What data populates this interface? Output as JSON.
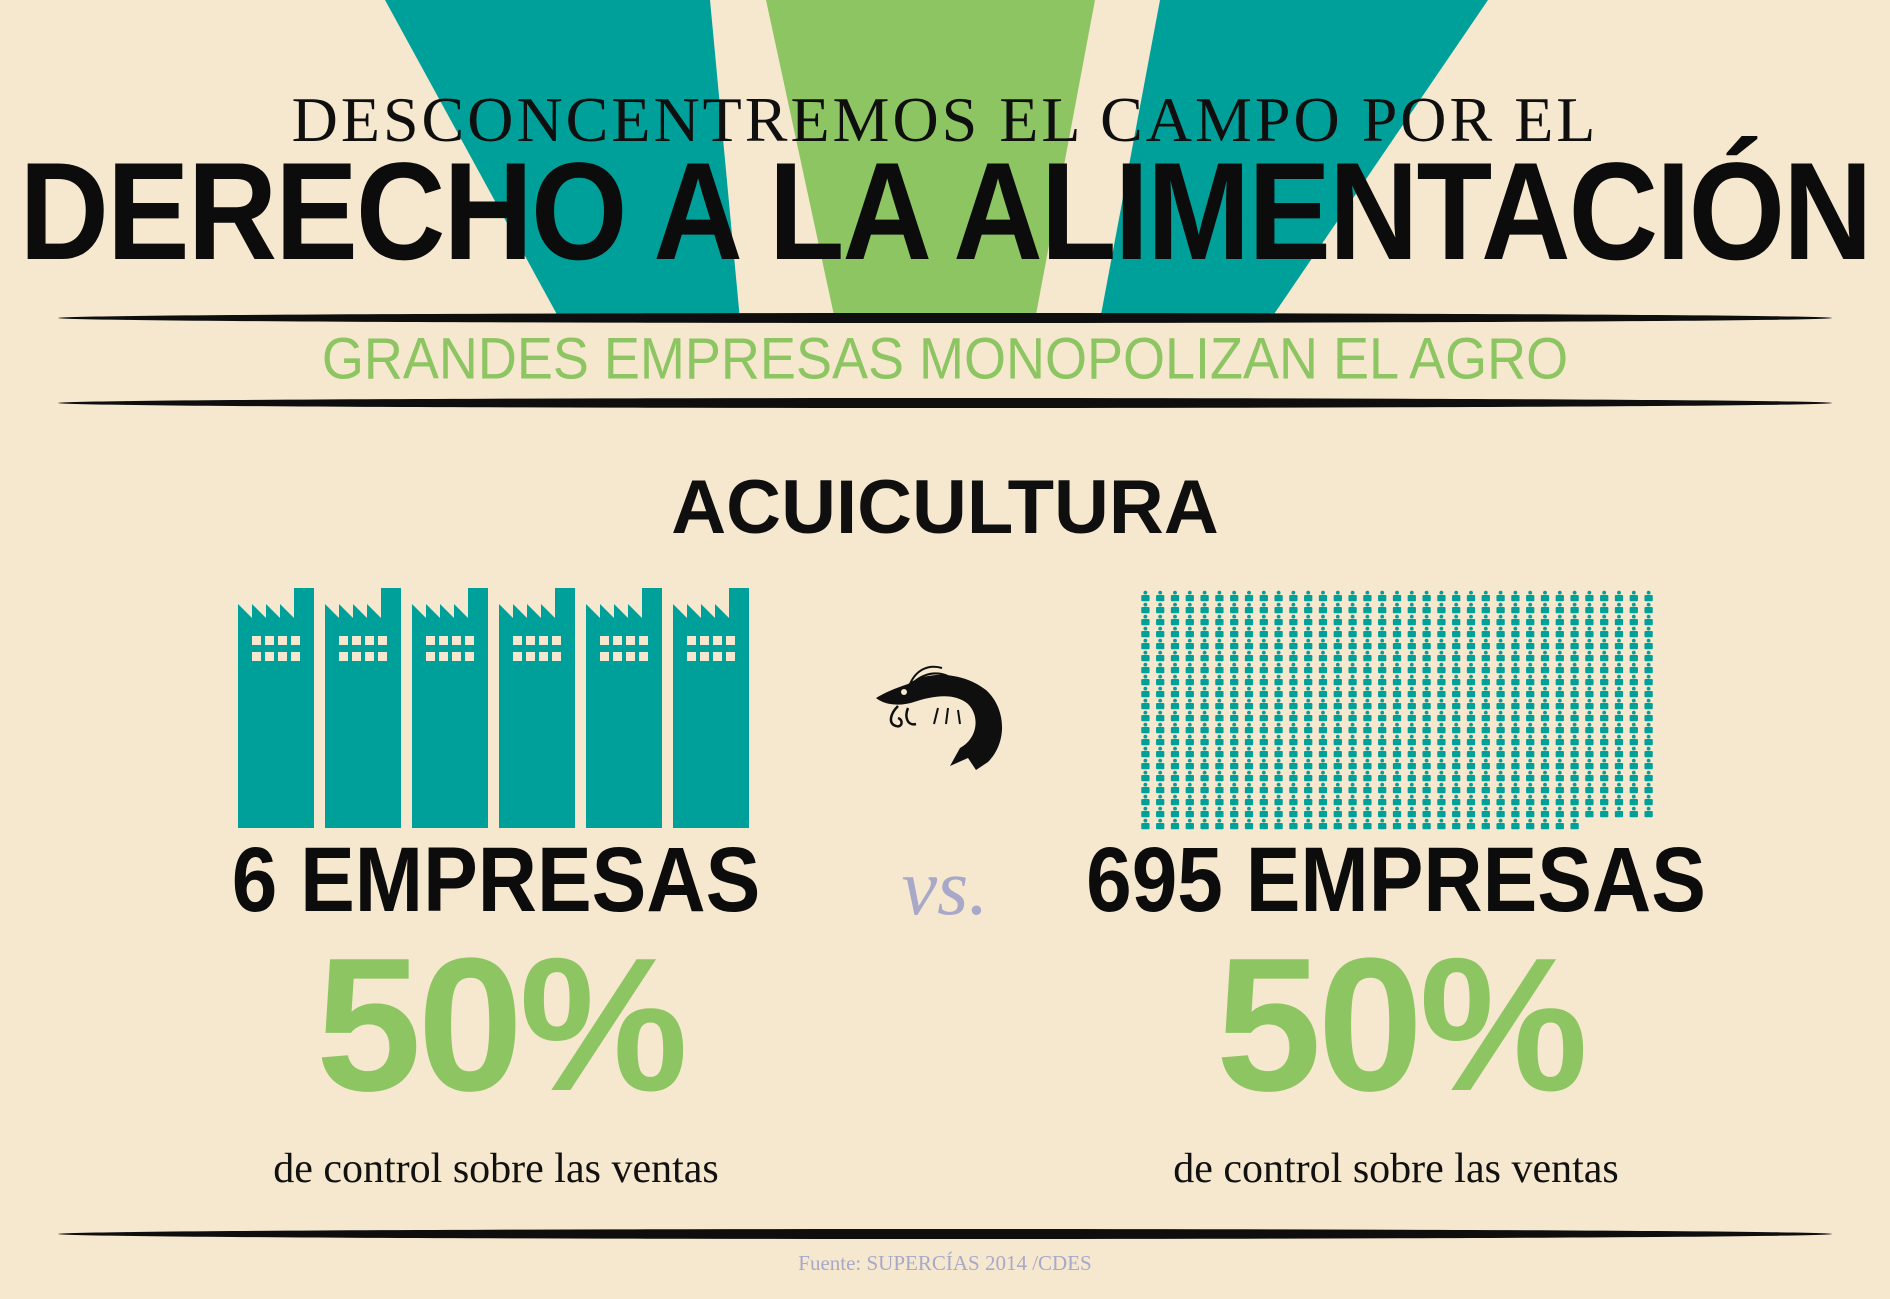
{
  "header": {
    "overline": "DESCONCENTREMOS EL CAMPO POR EL",
    "title": "DERECHO A LA ALIMENTACIÓN",
    "subtitle": "GRANDES EMPRESAS MONOPOLIZAN EL AGRO"
  },
  "section": {
    "title": "ACUICULTURA"
  },
  "left": {
    "company_count": 6,
    "count_label": "6 EMPRESAS",
    "share_percent": 50,
    "share_label": "50%",
    "caption": "de control sobre las ventas",
    "icon": "factory-icon"
  },
  "center": {
    "vs_label": "vs.",
    "icon": "shrimp-icon"
  },
  "right": {
    "company_count": 695,
    "count_label": "695 EMPRESAS",
    "share_percent": 50,
    "share_label": "50%",
    "caption": "de control sobre las ventas",
    "icon": "people-icon"
  },
  "footer": {
    "source": "Fuente: SUPERCÍAS 2014 /CDES"
  },
  "colors": {
    "background": "#f6e8cf",
    "teal": "#00a09a",
    "green": "#8cc561",
    "text": "#0f0f0f",
    "muted": "#a8a8c8"
  }
}
